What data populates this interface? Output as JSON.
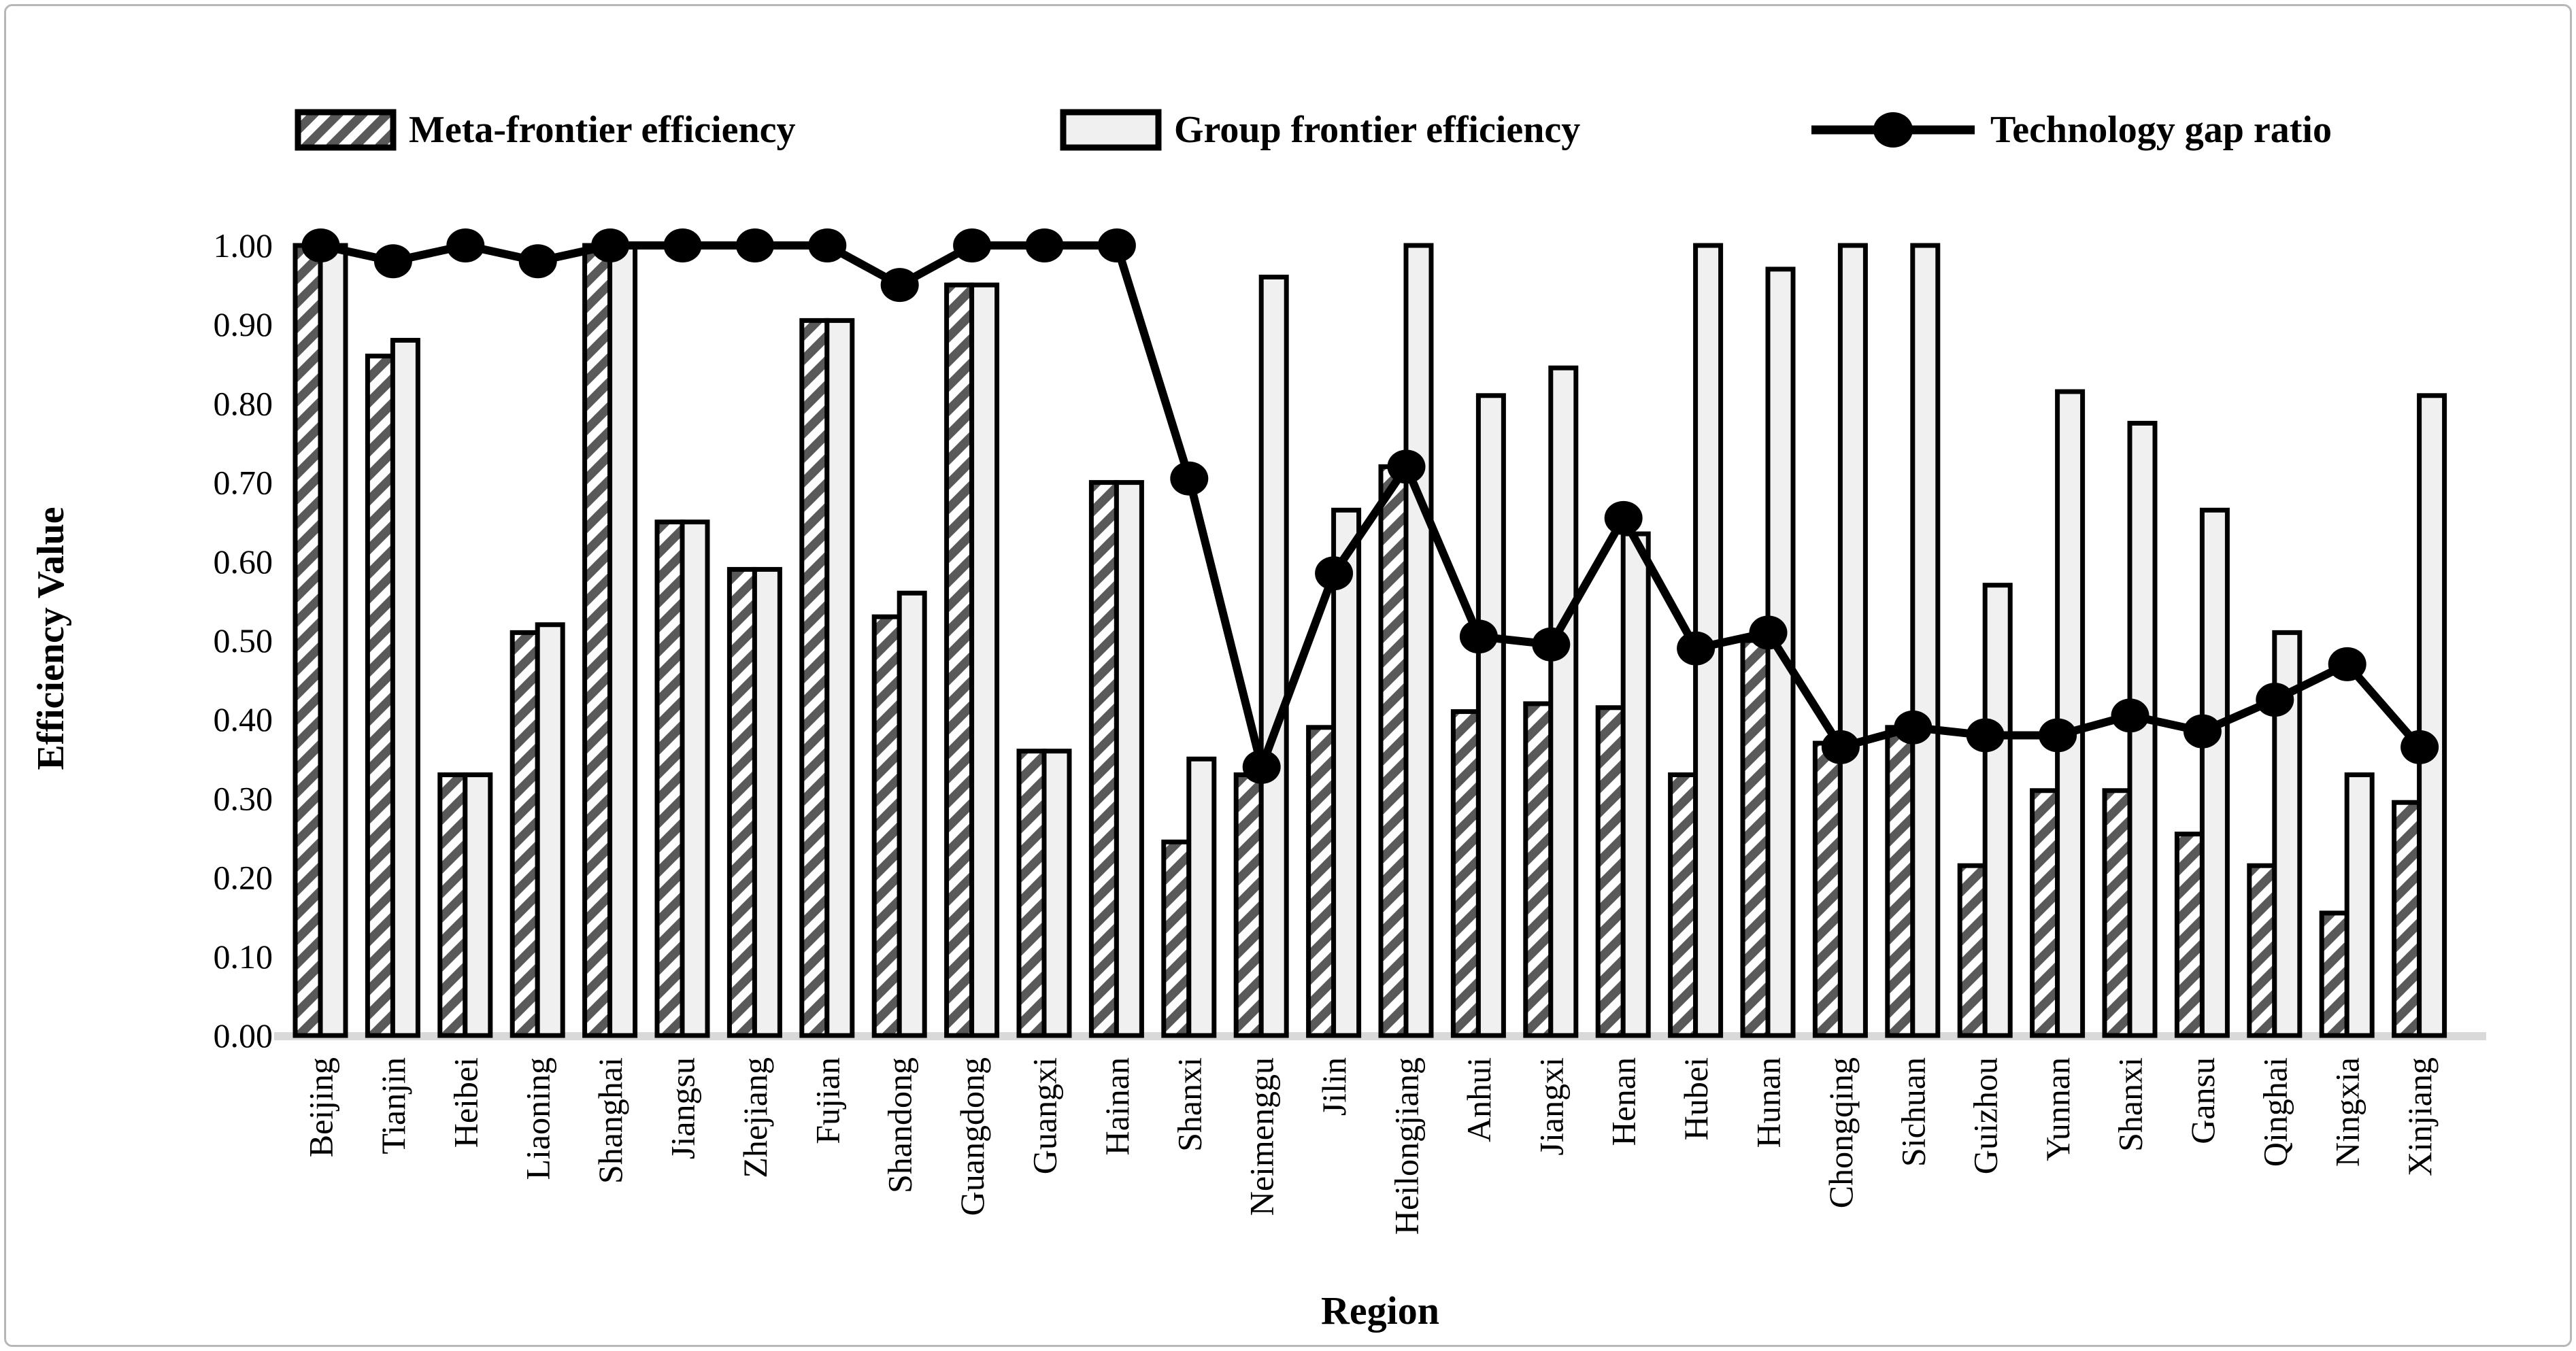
{
  "legend": {
    "items": [
      {
        "label": "Meta-frontier efficiency",
        "swatch": "hatched-bar-swatch"
      },
      {
        "label": "Group frontier efficiency",
        "swatch": "light-bar-swatch"
      },
      {
        "label": "Technology gap ratio",
        "swatch": "line-dot-swatch"
      }
    ]
  },
  "axes": {
    "y_title": "Efficiency Value",
    "x_title": "Region",
    "y_ticks": [
      "0.00",
      "0.10",
      "0.20",
      "0.30",
      "0.40",
      "0.50",
      "0.60",
      "0.70",
      "0.80",
      "0.90",
      "1.00"
    ]
  },
  "colors": {
    "bar_light_fill": "#f0f0f0",
    "hatch_stripe": "#595959",
    "bar_border": "#000000",
    "line": "#000000",
    "baseline": "#d9d9d9",
    "frame": "#b7b7b7",
    "text": "#000000"
  },
  "chart_data": {
    "type": "bar",
    "title": "",
    "xlabel": "Region",
    "ylabel": "Efficiency Value",
    "ylim": [
      0,
      1
    ],
    "grid": false,
    "legend_position": "top",
    "categories": [
      "Beijing",
      "Tianjin",
      "Heibei",
      "Liaoning",
      "Shanghai",
      "Jiangsu",
      "Zhejiang",
      "Fujian",
      "Shandong",
      "Guangdong",
      "Guangxi",
      "Hainan",
      "Shanxi",
      "Neimenggu",
      "Jilin",
      "Heilongjiang",
      "Anhui",
      "Jiangxi",
      "Henan",
      "Hubei",
      "Hunan",
      "Chongqing",
      "Sichuan",
      "Guizhou",
      "Yunnan",
      "Shanxi",
      "Gansu",
      "Qinghai",
      "Ningxia",
      "Xinjiang"
    ],
    "series": [
      {
        "name": "Meta-frontier efficiency",
        "type": "bar",
        "style": "hatched",
        "values": [
          1.0,
          0.86,
          0.33,
          0.51,
          1.0,
          0.65,
          0.59,
          0.905,
          0.53,
          0.95,
          0.36,
          0.7,
          0.245,
          0.33,
          0.39,
          0.72,
          0.41,
          0.42,
          0.415,
          0.33,
          0.5,
          0.37,
          0.39,
          0.215,
          0.31,
          0.31,
          0.255,
          0.215,
          0.155,
          0.295
        ]
      },
      {
        "name": "Group frontier efficiency",
        "type": "bar",
        "style": "solid-light",
        "values": [
          1.0,
          0.88,
          0.33,
          0.52,
          1.0,
          0.65,
          0.59,
          0.905,
          0.56,
          0.95,
          0.36,
          0.7,
          0.35,
          0.96,
          0.665,
          1.0,
          0.81,
          0.845,
          0.635,
          1.0,
          0.97,
          1.0,
          1.0,
          0.57,
          0.815,
          0.775,
          0.665,
          0.51,
          0.33,
          0.81
        ]
      },
      {
        "name": "Technology gap ratio",
        "type": "line",
        "marker": "circle",
        "values": [
          1.0,
          0.98,
          1.0,
          0.98,
          1.0,
          1.0,
          1.0,
          1.0,
          0.95,
          1.0,
          1.0,
          1.0,
          0.705,
          0.34,
          0.585,
          0.72,
          0.505,
          0.495,
          0.655,
          0.49,
          0.51,
          0.365,
          0.39,
          0.38,
          0.38,
          0.405,
          0.385,
          0.425,
          0.47,
          0.365
        ]
      }
    ]
  }
}
